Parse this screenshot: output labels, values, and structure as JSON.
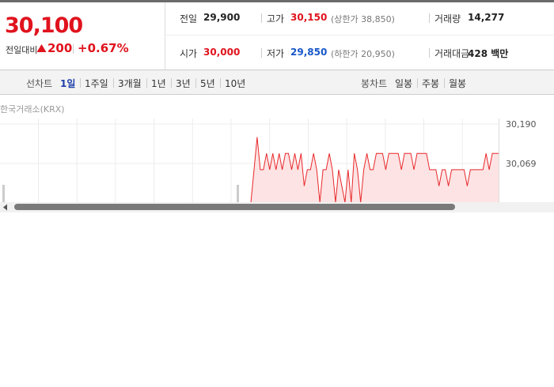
{
  "summary": {
    "price": "30,100",
    "change_label": "전일대비",
    "change": "200",
    "rate": "+0.67%"
  },
  "info": {
    "rows": [
      [
        {
          "label": "전일",
          "value": "29,900"
        },
        {
          "label": "고가",
          "value": "30,150",
          "note": "(상한가 38,850)"
        },
        {
          "label": "거래량",
          "value": "14,277"
        }
      ],
      [
        {
          "label": "시가",
          "value": "30,000"
        },
        {
          "label": "저가",
          "value": "29,850",
          "note": "(하한가 20,950)"
        },
        {
          "label": "거래대금",
          "value": "428 백만"
        }
      ]
    ]
  },
  "tabs": {
    "line_label": "선차트",
    "line_tabs": [
      "1일",
      "1주일",
      "3개월",
      "1년",
      "3년",
      "5년",
      "10년"
    ],
    "candle_label": "봉차트",
    "candle_tabs": [
      "일봉",
      "주봉",
      "월봉"
    ]
  },
  "source": "한국거래소(KRX)",
  "chart_data": {
    "type": "line",
    "color": "#e8282b",
    "ylim": [
      29948,
      30190
    ],
    "yticks": [
      {
        "value": 30190,
        "label": "30,190"
      },
      {
        "value": 30069,
        "label": "30,069"
      }
    ],
    "values": [
      29950,
      30050,
      30150,
      30050,
      30050,
      30100,
      30050,
      30100,
      30050,
      30100,
      30050,
      30100,
      30100,
      30050,
      30100,
      30050,
      30100,
      30000,
      30050,
      30050,
      30100,
      30050,
      29950,
      30050,
      30050,
      30100,
      30050,
      29950,
      30050,
      30000,
      29950,
      30050,
      29950,
      30100,
      30050,
      29950,
      30050,
      30100,
      30050,
      30050,
      30100,
      30100,
      30100,
      30050,
      30100,
      30100,
      30100,
      30100,
      30050,
      30100,
      30100,
      30100,
      30050,
      30100,
      30100,
      30100,
      30100,
      30050,
      30050,
      30050,
      30000,
      30050,
      30050,
      30000,
      30050,
      30050,
      30050,
      30050,
      30050,
      30000,
      30050,
      30050,
      30050,
      30050,
      30050,
      30100,
      30050,
      30100,
      30100,
      30100
    ]
  }
}
